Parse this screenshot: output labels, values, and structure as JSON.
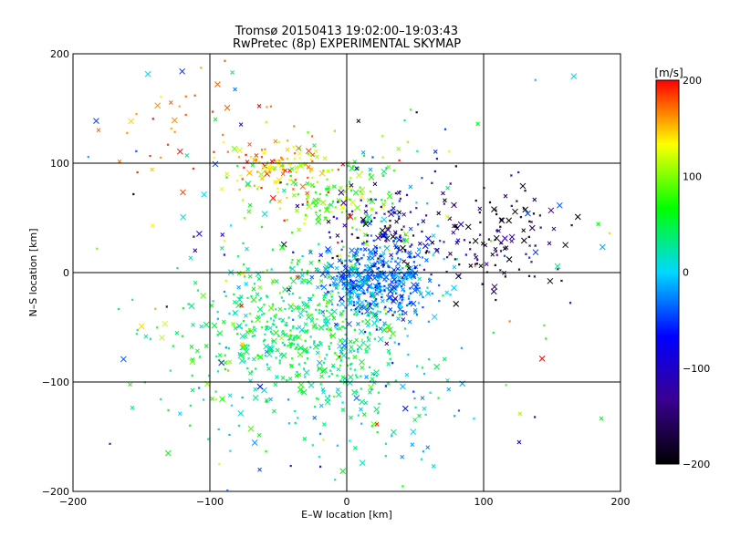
{
  "chart_data": {
    "type": "scatter",
    "title": "Tromsø 20150413 19:02:00–19:03:43",
    "subtitle": "RwPretec (8p) EXPERIMENTAL SKYMAP",
    "xlabel": "E–W location [km]",
    "ylabel": "N–S location [km]",
    "xlim": [
      -200,
      200
    ],
    "ylim": [
      -200,
      200
    ],
    "xticks": [
      -200,
      -100,
      0,
      100,
      200
    ],
    "yticks": [
      -200,
      -100,
      0,
      100,
      200
    ],
    "xtick_labels": [
      "−200",
      "−100",
      "0",
      "100",
      "200"
    ],
    "ytick_labels": [
      "−200",
      "−100",
      "0",
      "100",
      "200"
    ],
    "grid": true,
    "marker_style": "x",
    "colormap": {
      "label": "[m/s]",
      "vmin": -200,
      "vmax": 200,
      "ticks": [
        200,
        100,
        0,
        -100,
        -200
      ],
      "tick_labels": [
        "200",
        "100",
        "0",
        "−100",
        "−200"
      ],
      "stops": [
        "#000000",
        "#3a0090",
        "#0000ff",
        "#00d8ff",
        "#00ff00",
        "#ffff00",
        "#ff0000"
      ]
    },
    "point_groups": [
      {
        "center": [
          20,
          -5
        ],
        "spread": [
          20,
          18
        ],
        "count": 450,
        "value_mean": -30,
        "value_sd": 25
      },
      {
        "center": [
          -30,
          -50
        ],
        "spread": [
          32,
          32
        ],
        "count": 420,
        "value_mean": 40,
        "value_sd": 25
      },
      {
        "center": [
          -50,
          95
        ],
        "spread": [
          20,
          14
        ],
        "count": 110,
        "value_mean": 150,
        "value_sd": 30
      },
      {
        "center": [
          -10,
          70
        ],
        "spread": [
          25,
          22
        ],
        "count": 140,
        "value_mean": 85,
        "value_sd": 30
      },
      {
        "center": [
          30,
          40
        ],
        "spread": [
          25,
          20
        ],
        "count": 130,
        "value_mean": -130,
        "value_sd": 50
      },
      {
        "center": [
          110,
          30
        ],
        "spread": [
          30,
          25
        ],
        "count": 110,
        "value_mean": -170,
        "value_sd": 35
      },
      {
        "center": [
          -80,
          -60
        ],
        "spread": [
          40,
          55
        ],
        "count": 120,
        "value_mean": 50,
        "value_sd": 40
      },
      {
        "center": [
          20,
          -100
        ],
        "spread": [
          35,
          40
        ],
        "count": 110,
        "value_mean": 10,
        "value_sd": 35
      },
      {
        "center": [
          -110,
          140
        ],
        "spread": [
          30,
          30
        ],
        "count": 40,
        "value_mean": 180,
        "value_sd": 20
      },
      {
        "center": [
          0,
          0
        ],
        "spread": [
          120,
          110
        ],
        "count": 180,
        "value_mean": 0,
        "value_sd": 110
      }
    ]
  }
}
